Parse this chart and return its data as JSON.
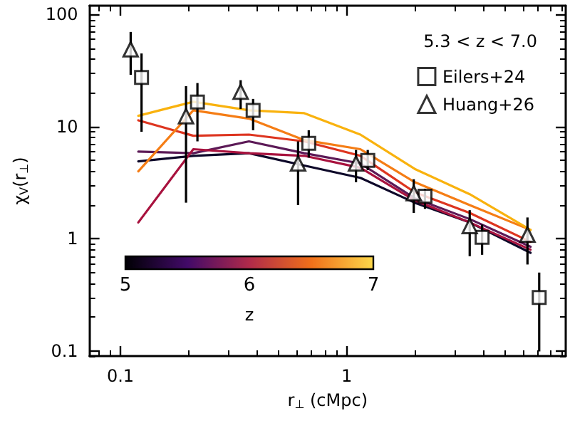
{
  "chart_data": {
    "type": "line",
    "xlabel": "r$_{⊥}$ (cMpc)",
    "ylabel": "χ$_{V}$(r$_{⊥}$)",
    "legend_title": "5.3 < z < 7.0",
    "clabel": "z",
    "annotations": [
      "5",
      "6",
      "7"
    ],
    "log": "xy",
    "xlim": [
      0.073,
      9.3
    ],
    "ylim": [
      0.09,
      120
    ],
    "xticks": [
      0.1,
      1
    ],
    "yticks": [
      0.1,
      1,
      10,
      100
    ],
    "grid": false,
    "legend": "top right",
    "line_style": "solid",
    "marker": "none",
    "series": [
      {
        "color": "#0d0829",
        "x": [
          0.12,
          0.21,
          0.37,
          0.65,
          1.15,
          2.0,
          3.5,
          6.5
        ],
        "values": [
          4.9,
          5.5,
          5.8,
          4.5,
          3.5,
          2.1,
          1.4,
          0.75
        ]
      },
      {
        "color": "#5c1a57",
        "x": [
          0.12,
          0.21,
          0.37,
          0.65,
          1.15,
          2.0,
          3.5,
          6.5
        ],
        "values": [
          6.0,
          5.8,
          7.4,
          5.8,
          4.7,
          2.3,
          1.5,
          0.85
        ]
      },
      {
        "color": "#a8123e",
        "x": [
          0.12,
          0.21,
          0.37,
          0.65,
          1.15,
          2.0,
          3.5,
          6.5
        ],
        "values": [
          1.4,
          6.3,
          5.8,
          5.5,
          4.3,
          2.2,
          1.4,
          0.8
        ]
      },
      {
        "color": "#dd3520",
        "x": [
          0.12,
          0.21,
          0.37,
          0.65,
          1.15,
          2.0,
          3.5,
          6.5
        ],
        "values": [
          11.4,
          8.3,
          8.5,
          7.4,
          5.5,
          2.6,
          1.7,
          0.94
        ]
      },
      {
        "color": "#f57d15",
        "x": [
          0.12,
          0.21,
          0.37,
          0.65,
          1.15,
          2.0,
          3.5,
          6.5
        ],
        "values": [
          4.0,
          14,
          11.8,
          7.6,
          6.3,
          3.2,
          2.0,
          1.2
        ]
      },
      {
        "color": "#f9b20e",
        "x": [
          0.12,
          0.21,
          0.37,
          0.65,
          1.15,
          2.0,
          3.5,
          6.5
        ],
        "values": [
          12.5,
          16.7,
          14,
          13.2,
          8.5,
          4.2,
          2.5,
          1.2
        ]
      },
      {
        "type": "scatter",
        "name": "Eilers+24",
        "marker": "square",
        "color": "#000000",
        "x": [
          0.124,
          0.219,
          0.386,
          0.68,
          1.24,
          2.22,
          3.97,
          7.1
        ],
        "values": [
          27.5,
          16.6,
          14,
          7.1,
          5.0,
          2.4,
          1.03,
          0.3
        ],
        "errors": [
          [
            9.0,
            45
          ],
          [
            7.4,
            24.5
          ],
          [
            9.3,
            17.7
          ],
          [
            5.3,
            9.3
          ],
          [
            4.1,
            6.2
          ],
          [
            1.85,
            2.8
          ],
          [
            0.72,
            1.34
          ],
          [
            0.099,
            0.5
          ]
        ]
      },
      {
        "type": "scatter",
        "name": "Huang+26",
        "marker": "triangle",
        "color": "#000000",
        "x": [
          0.111,
          0.195,
          0.34,
          0.61,
          1.1,
          1.98,
          3.5,
          6.3
        ],
        "values": [
          49,
          12.4,
          20.5,
          4.7,
          4.7,
          2.55,
          1.3,
          1.09
        ],
        "errors": [
          [
            29,
            70
          ],
          [
            2.1,
            23
          ],
          [
            14.4,
            26
          ],
          [
            2.0,
            7.4
          ],
          [
            3.2,
            6.2
          ],
          [
            1.7,
            3.4
          ],
          [
            0.7,
            1.8
          ],
          [
            0.59,
            1.55
          ]
        ]
      }
    ]
  }
}
